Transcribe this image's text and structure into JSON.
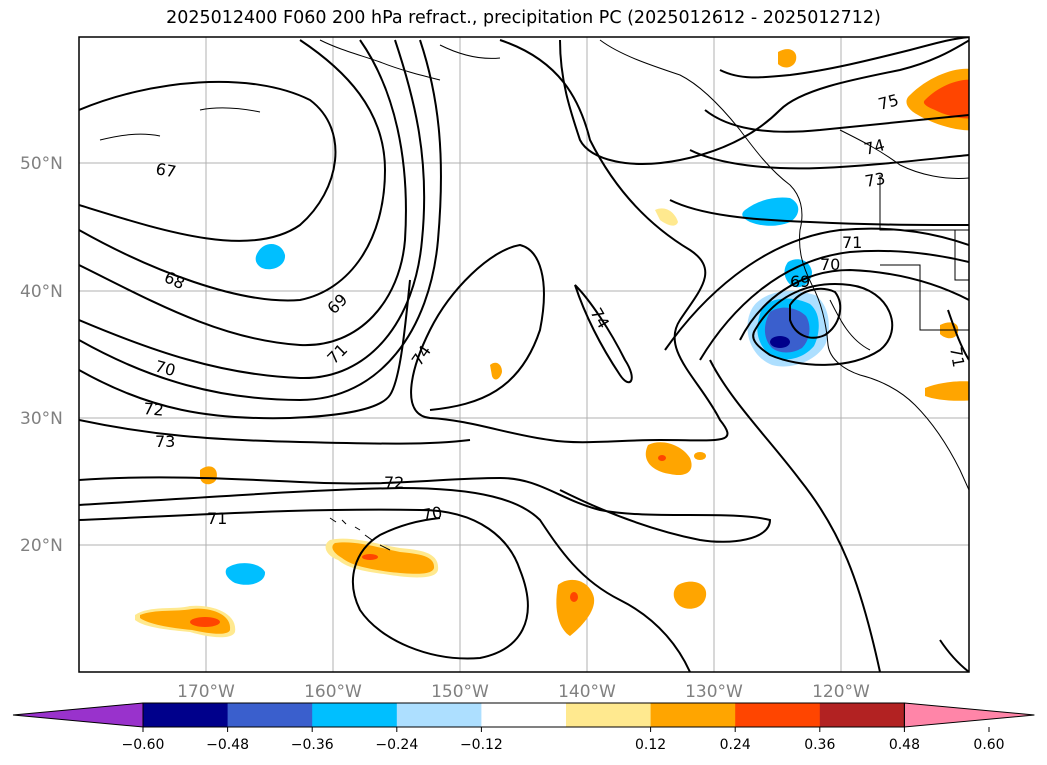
{
  "title": "2025012400 F060 200 hPa refract., precipitation PC (2025012612 - 2025012712)",
  "map": {
    "lat_labels": [
      "50°N",
      "40°N",
      "30°N",
      "20°N"
    ],
    "lon_labels": [
      "170°W",
      "160°W",
      "150°W",
      "140°W",
      "130°W",
      "120°W"
    ],
    "contour_labels": [
      "67",
      "68",
      "69",
      "70",
      "71",
      "72",
      "73",
      "74",
      "75",
      "72",
      "71",
      "70",
      "74",
      "74",
      "73",
      "71",
      "70",
      "69",
      "71"
    ]
  },
  "colorbar": {
    "ticks": [
      "−0.60",
      "−0.48",
      "−0.36",
      "−0.24",
      "−0.12",
      "0.12",
      "0.24",
      "0.36",
      "0.48",
      "0.60"
    ],
    "colors": [
      "#9932CC",
      "#00008B",
      "#3A5FCD",
      "#00BFFF",
      "#ADDFFF",
      "#FFFFFF",
      "#FFE98F",
      "#FFA500",
      "#FF4500",
      "#B22222",
      "#FF85A8"
    ]
  }
}
